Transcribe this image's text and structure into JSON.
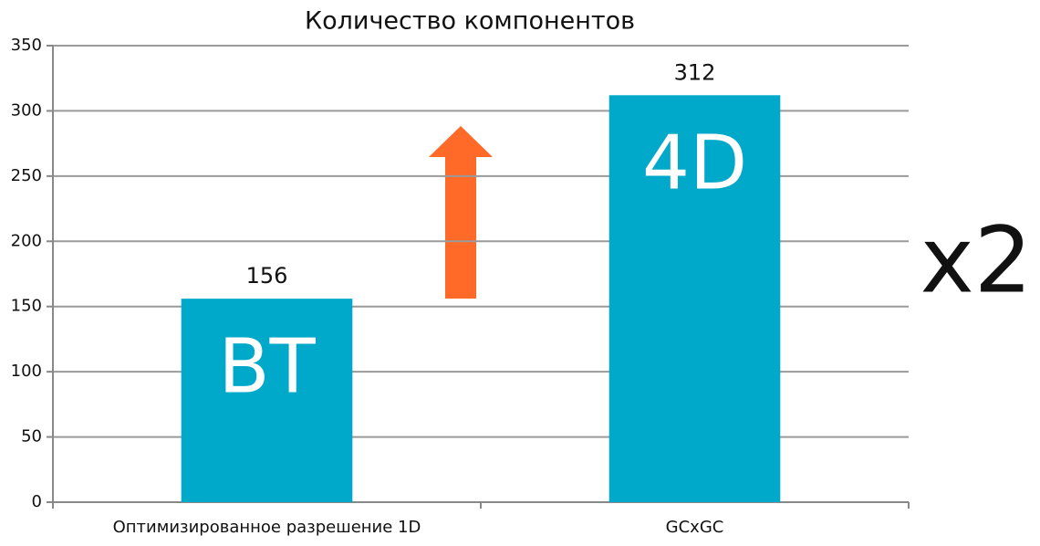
{
  "chart_data": {
    "type": "bar",
    "title": "Количество компонентов",
    "categories": [
      "Оптимизированное разрешение 1D",
      "GCxGC"
    ],
    "values": [
      156,
      312
    ],
    "bar_labels": [
      "BT",
      "4D"
    ],
    "annotation": "x2",
    "color": "#00a9c9",
    "ylim": [
      0,
      350
    ],
    "yticks": [
      0,
      50,
      100,
      150,
      200,
      250,
      300,
      350
    ],
    "grid": true
  }
}
